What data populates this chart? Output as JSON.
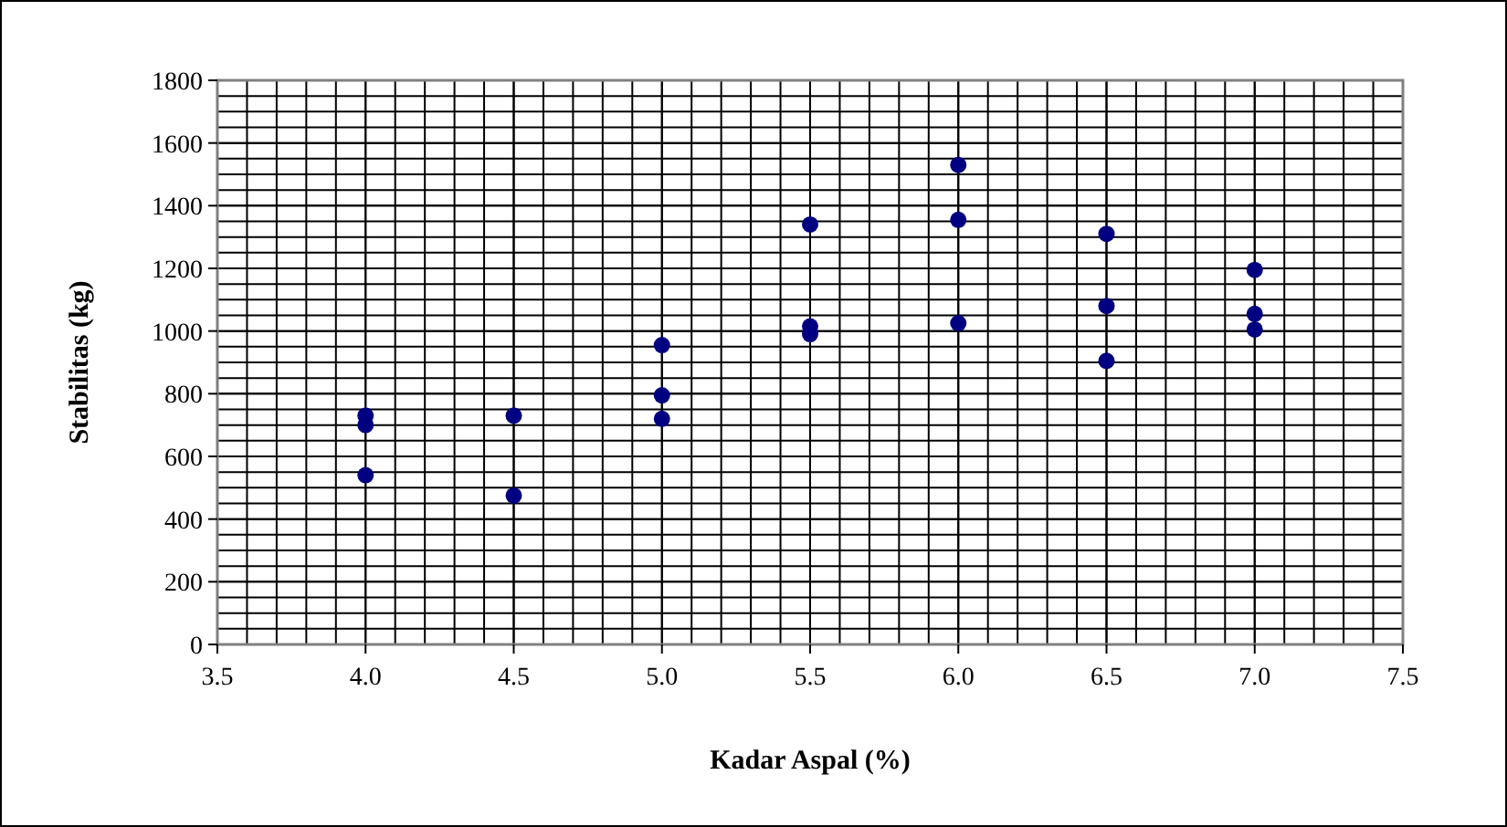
{
  "chart_data": {
    "type": "scatter",
    "xlabel": "Kadar Aspal (%)",
    "ylabel": "Stabilitas (kg)",
    "x": [
      4.0,
      4.0,
      4.0,
      4.5,
      4.5,
      5.0,
      5.0,
      5.0,
      5.5,
      5.5,
      5.5,
      6.0,
      6.0,
      6.0,
      6.5,
      6.5,
      6.5,
      7.0,
      7.0,
      7.0
    ],
    "series": [
      {
        "color": "#000080",
        "values": [
          730,
          700,
          540,
          730,
          475,
          955,
          795,
          720,
          1340,
          1015,
          990,
          1530,
          1355,
          1025,
          1310,
          1080,
          905,
          1195,
          1055,
          1005
        ]
      }
    ],
    "xlim": [
      3.5,
      7.5
    ],
    "xticks": [
      {
        "value": 3.5,
        "label": "3.5"
      },
      {
        "value": 4,
        "label": "4.0"
      },
      {
        "value": 4.5,
        "label": "4.5"
      },
      {
        "value": 5,
        "label": "5.0"
      },
      {
        "value": 5.5,
        "label": "5.5"
      },
      {
        "value": 6,
        "label": "6.0"
      },
      {
        "value": 6.5,
        "label": "6.5"
      },
      {
        "value": 7,
        "label": "7.0"
      },
      {
        "value": 7.5,
        "label": "7.5"
      }
    ],
    "ylim": [
      0,
      1800
    ],
    "yticks": [
      0,
      200,
      400,
      600,
      800,
      1000,
      1200,
      1400,
      1600,
      1800
    ],
    "grid": true,
    "marker": "circle"
  }
}
